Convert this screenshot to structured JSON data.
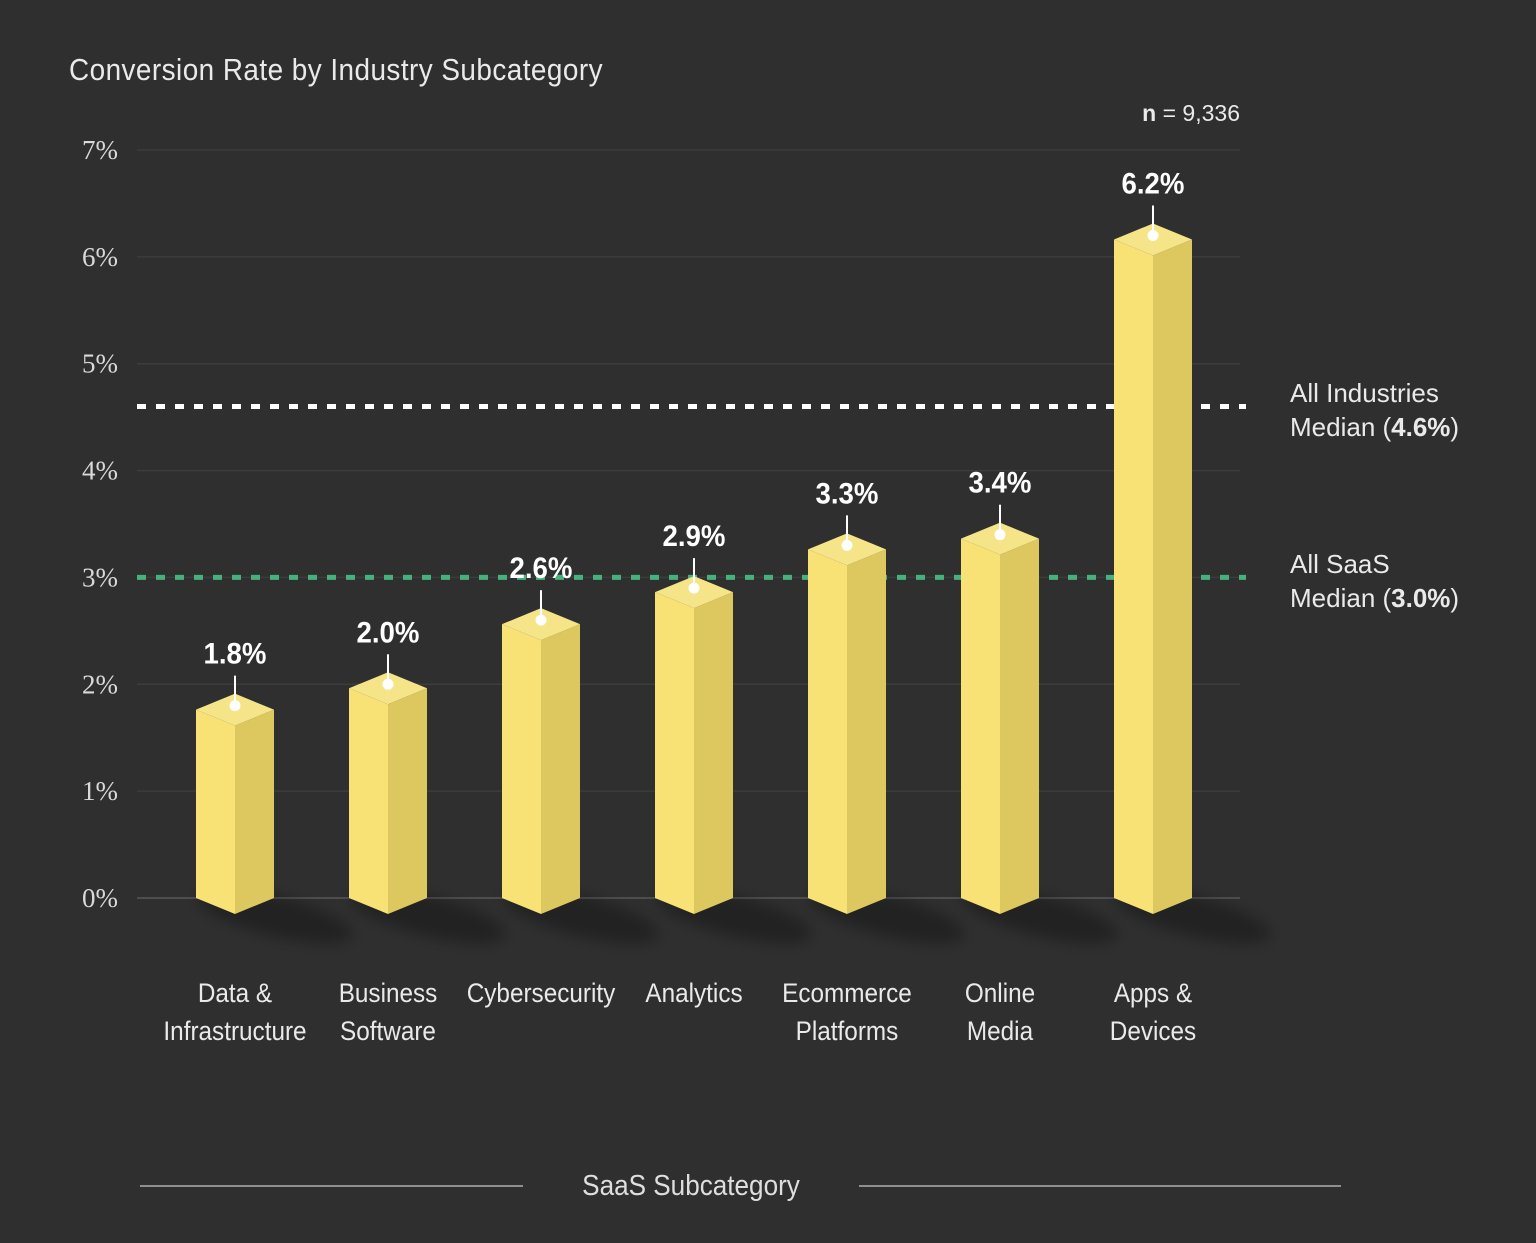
{
  "title": "Conversion Rate by Industry Subcategory",
  "header": {
    "sample_prefix": "n",
    "sample_rest": " = 9,336"
  },
  "colors": {
    "background": "#2f2f2f",
    "bar_left": "#f8e276",
    "bar_right": "#ddc75f",
    "bar_top": "#f5e488",
    "gridline": "#3c3c3c",
    "baseline": "#4e4e4e",
    "marker": "#ffffff",
    "shadow": "rgba(0,0,0,0.28)",
    "median_industries": "#ffffff",
    "median_saas": "#45b27e",
    "axis_rule": "#8f8f8f"
  },
  "chart_data": {
    "type": "bar",
    "title": "Conversion Rate by Industry Subcategory",
    "xlabel": "SaaS Subcategory",
    "ylabel": "",
    "ylim": [
      0,
      7
    ],
    "grid": true,
    "y_tick_labels": [
      "0%",
      "1%",
      "2%",
      "3%",
      "4%",
      "5%",
      "6%",
      "7%"
    ],
    "categories": [
      "Data & Infrastructure",
      "Business Software",
      "Cybersecurity",
      "Analytics",
      "Ecommerce Platforms",
      "Online Media",
      "Apps & Devices"
    ],
    "category_lines": [
      [
        "Data &",
        "Infrastructure"
      ],
      [
        "Business",
        "Software"
      ],
      [
        "Cybersecurity"
      ],
      [
        "Analytics"
      ],
      [
        "Ecommerce",
        "Platforms"
      ],
      [
        "Online",
        "Media"
      ],
      [
        "Apps &",
        "Devices"
      ]
    ],
    "values": [
      1.8,
      2.0,
      2.6,
      2.9,
      3.3,
      3.4,
      6.2
    ],
    "value_labels": [
      "1.8%",
      "2.0%",
      "2.6%",
      "2.9%",
      "3.3%",
      "3.4%",
      "6.2%"
    ],
    "sample_size": "n = 9,336",
    "reference_lines": [
      {
        "value": 4.6,
        "color": "#ffffff",
        "line1": "All Industries",
        "line2_pre": "Median (",
        "line2_value": "4.6%",
        "line2_post": ")"
      },
      {
        "value": 3.0,
        "color": "#45b27e",
        "line1": "All SaaS",
        "line2_pre": "Median (",
        "line2_value": "3.0%",
        "line2_post": ")"
      }
    ],
    "legend_position": "right"
  }
}
